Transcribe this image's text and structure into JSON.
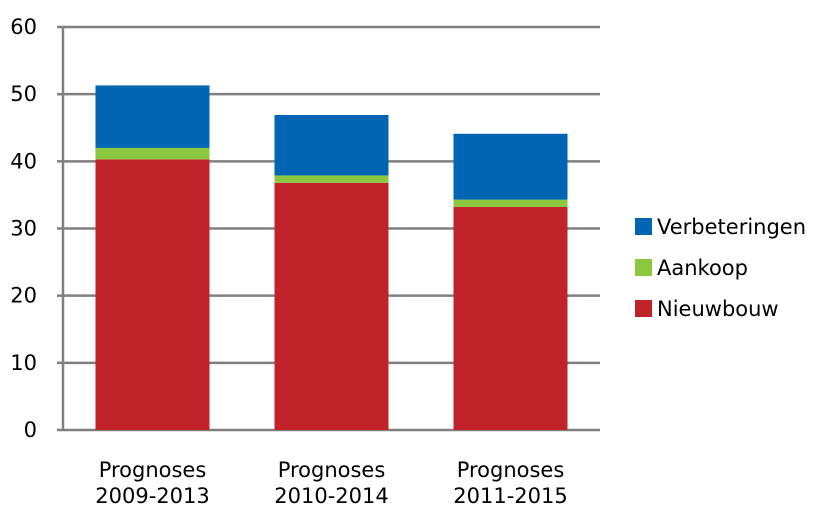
{
  "chart_data": {
    "type": "bar",
    "stacked": true,
    "title": "",
    "xlabel": "",
    "ylabel": "",
    "ylim": [
      0,
      60
    ],
    "yticks": [
      0,
      10,
      20,
      30,
      40,
      50,
      60
    ],
    "grid": true,
    "legend_position": "right",
    "categories": [
      [
        "Prognoses",
        "2009-2013"
      ],
      [
        "Prognoses",
        "2010-2014"
      ],
      [
        "Prognoses",
        "2011-2015"
      ]
    ],
    "series": [
      {
        "name": "Nieuwbouw",
        "color": "#c1232b",
        "values": [
          40.3,
          36.8,
          33.2
        ]
      },
      {
        "name": "Aankoop",
        "color": "#8dc63f",
        "values": [
          1.7,
          1.1,
          1.1
        ]
      },
      {
        "name": "Verbeteringen",
        "color": "#0066b3",
        "values": [
          9.3,
          9.0,
          9.8
        ]
      }
    ],
    "legend_order": [
      "Verbeteringen",
      "Aankoop",
      "Nieuwbouw"
    ]
  }
}
